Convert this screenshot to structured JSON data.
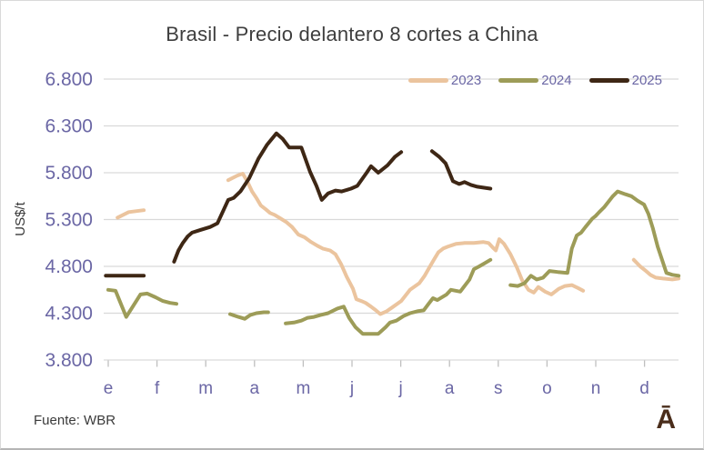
{
  "title": "Brasil - Precio delantero 8 cortes a China",
  "source_note": "Fuente: WBR",
  "brand_logo": "Ā",
  "colors": {
    "series_2023": "#ebc49e",
    "series_2024": "#9d9c58",
    "series_2025": "#3e2715",
    "axis_label": "#6b67a5",
    "title_text": "#3e3e3e",
    "gridline": "#d9d9d9",
    "axis_tick": "#bfbfbf",
    "background": "#ffffff"
  },
  "chart_data": {
    "type": "line",
    "title": "Brasil - Precio delantero 8 cortes a China",
    "ylabel": "US$/t",
    "xlabel": "",
    "ylim": [
      3800,
      6800
    ],
    "y_ticks": [
      {
        "value": 6800,
        "label": "6.800"
      },
      {
        "value": 6300,
        "label": "6.300"
      },
      {
        "value": 5800,
        "label": "5.800"
      },
      {
        "value": 5300,
        "label": "5.300"
      },
      {
        "value": 4800,
        "label": "4.800"
      },
      {
        "value": 4300,
        "label": "4.300"
      },
      {
        "value": 3800,
        "label": "3.800"
      }
    ],
    "x_ticks": [
      "e",
      "f",
      "m",
      "a",
      "m",
      "j",
      "j",
      "a",
      "s",
      "o",
      "n",
      "d"
    ],
    "grid": true,
    "legend_position": "top-right",
    "x_format": "fractional month index (0 = e/enero tick, 11 = d/diciembre tick); weekly prices in US$/t; line breaks = weeks without quotation",
    "series": [
      {
        "name": "2023",
        "color": "#ebc49e",
        "segments": [
          [
            [
              0.19,
              5320
            ],
            [
              0.42,
              5380
            ],
            [
              0.73,
              5400
            ]
          ],
          [
            [
              2.46,
              5720
            ],
            [
              2.65,
              5770
            ],
            [
              2.76,
              5790
            ],
            [
              2.85,
              5710
            ],
            [
              2.95,
              5600
            ],
            [
              3.04,
              5530
            ],
            [
              3.13,
              5450
            ],
            [
              3.23,
              5410
            ],
            [
              3.32,
              5370
            ],
            [
              3.41,
              5350
            ],
            [
              3.54,
              5310
            ],
            [
              3.66,
              5270
            ],
            [
              3.77,
              5220
            ],
            [
              3.9,
              5140
            ],
            [
              4.03,
              5110
            ],
            [
              4.16,
              5060
            ],
            [
              4.29,
              5020
            ],
            [
              4.4,
              4990
            ],
            [
              4.55,
              4970
            ],
            [
              4.66,
              4930
            ],
            [
              4.78,
              4820
            ],
            [
              4.89,
              4690
            ],
            [
              5.02,
              4560
            ],
            [
              5.09,
              4450
            ],
            [
              5.19,
              4430
            ],
            [
              5.28,
              4410
            ],
            [
              5.39,
              4370
            ],
            [
              5.49,
              4330
            ],
            [
              5.58,
              4290
            ],
            [
              5.71,
              4320
            ],
            [
              5.82,
              4360
            ],
            [
              6.01,
              4430
            ],
            [
              6.19,
              4550
            ],
            [
              6.38,
              4620
            ],
            [
              6.49,
              4700
            ],
            [
              6.59,
              4790
            ],
            [
              6.68,
              4870
            ],
            [
              6.77,
              4950
            ],
            [
              6.87,
              4990
            ],
            [
              6.96,
              5010
            ],
            [
              7.13,
              5040
            ],
            [
              7.31,
              5050
            ],
            [
              7.5,
              5050
            ],
            [
              7.69,
              5060
            ],
            [
              7.8,
              5050
            ],
            [
              7.89,
              5000
            ],
            [
              7.95,
              4970
            ],
            [
              8.02,
              5090
            ],
            [
              8.12,
              5040
            ],
            [
              8.25,
              4930
            ],
            [
              8.38,
              4790
            ],
            [
              8.49,
              4650
            ],
            [
              8.62,
              4550
            ],
            [
              8.73,
              4520
            ],
            [
              8.82,
              4580
            ],
            [
              8.96,
              4530
            ],
            [
              9.09,
              4500
            ],
            [
              9.24,
              4560
            ],
            [
              9.37,
              4590
            ],
            [
              9.51,
              4600
            ],
            [
              9.63,
              4570
            ],
            [
              9.74,
              4540
            ]
          ],
          [
            [
              10.78,
              4870
            ],
            [
              10.91,
              4800
            ],
            [
              11.03,
              4750
            ],
            [
              11.12,
              4710
            ],
            [
              11.23,
              4680
            ],
            [
              11.38,
              4670
            ],
            [
              11.57,
              4660
            ],
            [
              11.7,
              4670
            ]
          ]
        ]
      },
      {
        "name": "2024",
        "color": "#9d9c58",
        "segments": [
          [
            [
              0.0,
              4550
            ],
            [
              0.15,
              4540
            ],
            [
              0.37,
              4260
            ],
            [
              0.66,
              4500
            ],
            [
              0.8,
              4510
            ],
            [
              0.97,
              4470
            ],
            [
              1.12,
              4430
            ],
            [
              1.27,
              4410
            ],
            [
              1.4,
              4400
            ]
          ],
          [
            [
              2.5,
              4290
            ],
            [
              2.67,
              4260
            ],
            [
              2.8,
              4240
            ],
            [
              2.91,
              4280
            ],
            [
              3.04,
              4300
            ],
            [
              3.19,
              4310
            ],
            [
              3.28,
              4310
            ]
          ],
          [
            [
              3.64,
              4190
            ],
            [
              3.81,
              4200
            ],
            [
              3.96,
              4220
            ],
            [
              4.09,
              4250
            ],
            [
              4.22,
              4260
            ],
            [
              4.35,
              4280
            ],
            [
              4.51,
              4300
            ],
            [
              4.7,
              4350
            ],
            [
              4.83,
              4370
            ],
            [
              4.94,
              4250
            ],
            [
              5.07,
              4150
            ],
            [
              5.22,
              4080
            ],
            [
              5.39,
              4080
            ],
            [
              5.54,
              4080
            ],
            [
              5.69,
              4150
            ],
            [
              5.78,
              4200
            ],
            [
              5.91,
              4220
            ],
            [
              6.06,
              4270
            ],
            [
              6.19,
              4300
            ],
            [
              6.34,
              4320
            ],
            [
              6.47,
              4330
            ],
            [
              6.57,
              4400
            ],
            [
              6.66,
              4460
            ],
            [
              6.75,
              4440
            ],
            [
              6.94,
              4500
            ],
            [
              7.03,
              4550
            ],
            [
              7.22,
              4530
            ],
            [
              7.41,
              4660
            ],
            [
              7.5,
              4770
            ],
            [
              7.61,
              4800
            ],
            [
              7.71,
              4830
            ],
            [
              7.84,
              4870
            ]
          ],
          [
            [
              8.25,
              4600
            ],
            [
              8.4,
              4590
            ],
            [
              8.54,
              4620
            ],
            [
              8.67,
              4700
            ],
            [
              8.79,
              4660
            ],
            [
              8.92,
              4680
            ],
            [
              9.05,
              4750
            ],
            [
              9.22,
              4740
            ],
            [
              9.42,
              4730
            ],
            [
              9.51,
              4990
            ],
            [
              9.61,
              5130
            ],
            [
              9.7,
              5160
            ],
            [
              9.79,
              5220
            ],
            [
              9.93,
              5310
            ],
            [
              10.0,
              5340
            ],
            [
              10.07,
              5380
            ],
            [
              10.17,
              5430
            ],
            [
              10.35,
              5550
            ],
            [
              10.45,
              5600
            ],
            [
              10.61,
              5570
            ],
            [
              10.73,
              5550
            ],
            [
              10.86,
              5500
            ],
            [
              10.99,
              5460
            ],
            [
              11.08,
              5360
            ],
            [
              11.17,
              5210
            ],
            [
              11.27,
              5010
            ],
            [
              11.36,
              4870
            ],
            [
              11.45,
              4730
            ],
            [
              11.57,
              4710
            ],
            [
              11.7,
              4700
            ]
          ]
        ]
      },
      {
        "name": "2025",
        "color": "#3e2715",
        "segments": [
          [
            [
              -0.05,
              4700
            ],
            [
              0.22,
              4700
            ],
            [
              0.49,
              4700
            ],
            [
              0.73,
              4700
            ]
          ],
          [
            [
              1.35,
              4850
            ],
            [
              1.44,
              4970
            ],
            [
              1.53,
              5050
            ],
            [
              1.63,
              5120
            ],
            [
              1.72,
              5160
            ],
            [
              1.9,
              5190
            ],
            [
              2.09,
              5220
            ],
            [
              2.24,
              5260
            ],
            [
              2.46,
              5510
            ],
            [
              2.57,
              5530
            ],
            [
              2.71,
              5600
            ],
            [
              2.89,
              5740
            ],
            [
              3.08,
              5950
            ],
            [
              3.26,
              6100
            ],
            [
              3.45,
              6220
            ],
            [
              3.58,
              6160
            ],
            [
              3.71,
              6070
            ],
            [
              3.96,
              6070
            ],
            [
              4.14,
              5810
            ],
            [
              4.27,
              5660
            ],
            [
              4.38,
              5510
            ],
            [
              4.51,
              5580
            ],
            [
              4.66,
              5610
            ],
            [
              4.79,
              5600
            ],
            [
              4.98,
              5630
            ],
            [
              5.11,
              5660
            ],
            [
              5.3,
              5800
            ],
            [
              5.39,
              5870
            ],
            [
              5.54,
              5800
            ],
            [
              5.73,
              5880
            ],
            [
              5.88,
              5970
            ],
            [
              6.01,
              6020
            ]
          ],
          [
            [
              6.64,
              6030
            ],
            [
              6.79,
              5970
            ],
            [
              6.92,
              5900
            ],
            [
              7.07,
              5710
            ],
            [
              7.2,
              5680
            ],
            [
              7.31,
              5700
            ],
            [
              7.44,
              5670
            ],
            [
              7.57,
              5650
            ],
            [
              7.71,
              5640
            ],
            [
              7.84,
              5630
            ]
          ]
        ]
      }
    ]
  }
}
